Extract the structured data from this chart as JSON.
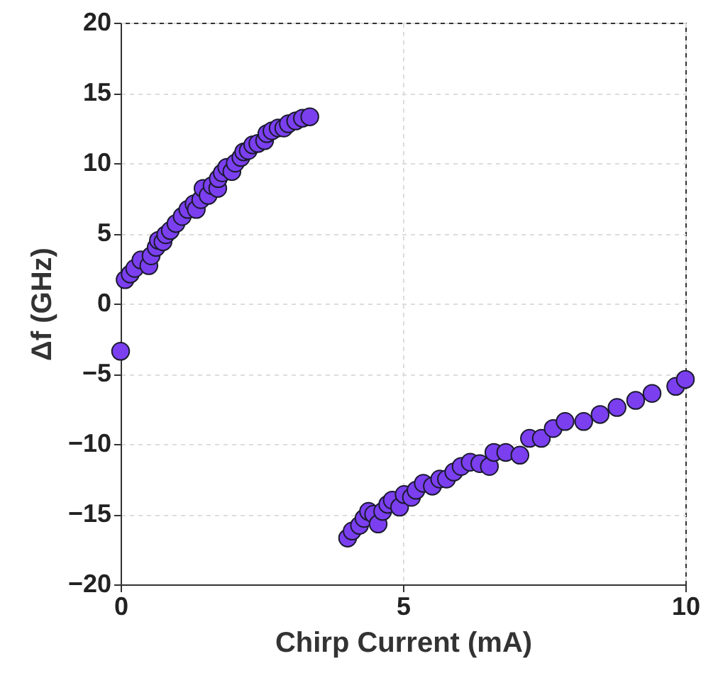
{
  "chart_data": {
    "type": "scatter",
    "xlabel": "Chirp Current (mA)",
    "ylabel": "Δf (GHz)",
    "xlim": [
      0,
      10
    ],
    "ylim": [
      -20,
      20
    ],
    "xticks": [
      0,
      5,
      10
    ],
    "yticks": [
      -20,
      -15,
      -10,
      -5,
      0,
      5,
      10,
      15,
      20
    ],
    "grid": true,
    "marker": "circle",
    "series": [
      {
        "color": "#7b3ff0",
        "x": [
          0,
          0.08,
          0.17,
          0.25,
          0.36,
          0.5,
          0.54,
          0.63,
          0.67,
          0.75,
          0.8,
          0.88,
          0.98,
          1.09,
          1.19,
          1.3,
          1.34,
          1.42,
          1.46,
          1.55,
          1.62,
          1.72,
          1.73,
          1.8,
          1.88,
          1.97,
          2.03,
          2.13,
          2.18,
          2.26,
          2.34,
          2.43,
          2.55,
          2.59,
          2.68,
          2.79,
          2.89,
          2.97,
          3.1,
          3.22,
          3.35,
          4.02,
          4.1,
          4.23,
          4.31,
          4.39,
          4.48,
          4.56,
          4.64,
          4.73,
          4.81,
          4.94,
          5.02,
          5.15,
          5.23,
          5.36,
          5.52,
          5.65,
          5.77,
          5.9,
          6.03,
          6.19,
          6.36,
          6.53,
          6.61,
          6.82,
          7.07,
          7.24,
          7.45,
          7.66,
          7.87,
          8.2,
          8.49,
          8.79,
          9.12,
          9.41,
          9.83,
          10
        ],
        "values": [
          -3.4,
          1.7,
          2.1,
          2.5,
          3.1,
          2.7,
          3.4,
          4.0,
          4.5,
          4.4,
          4.9,
          5.2,
          5.7,
          6.2,
          6.7,
          7.1,
          6.7,
          7.4,
          8.2,
          7.7,
          8.4,
          8.2,
          8.9,
          9.3,
          9.7,
          9.4,
          10.0,
          10.4,
          10.8,
          10.9,
          11.3,
          11.4,
          11.6,
          12.1,
          12.3,
          12.5,
          12.5,
          12.8,
          13.0,
          13.2,
          13.3,
          -16.7,
          -16.2,
          -15.8,
          -15.3,
          -14.8,
          -15.0,
          -15.7,
          -14.8,
          -14.3,
          -14.0,
          -14.5,
          -13.6,
          -13.8,
          -13.3,
          -12.8,
          -13.0,
          -12.5,
          -12.5,
          -12.0,
          -11.6,
          -11.3,
          -11.4,
          -11.6,
          -10.6,
          -10.6,
          -10.8,
          -9.6,
          -9.6,
          -8.9,
          -8.4,
          -8.4,
          -7.9,
          -7.4,
          -6.9,
          -6.4,
          -5.9,
          -5.4
        ]
      }
    ]
  }
}
